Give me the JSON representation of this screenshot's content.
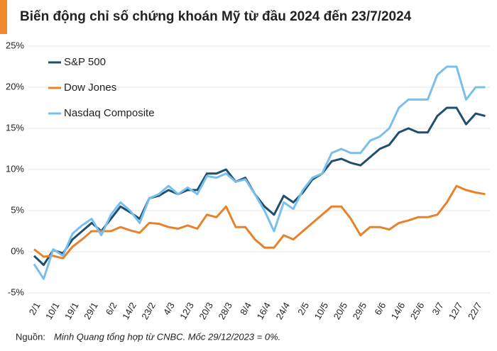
{
  "chart_data": {
    "type": "line",
    "title": "Biến động chỉ số chứng khoán Mỹ từ đầu 2024 đến 23/7/2024",
    "note_label": "Nguồn:",
    "note": "Minh Quang tổng hợp từ CNBC. Mốc 29/12/2023 = 0%.",
    "categories": [
      "2/1",
      null,
      "10/1",
      null,
      "19/1",
      null,
      "29/1",
      null,
      "6/2",
      null,
      "14/2",
      null,
      "23/2",
      null,
      "4/3",
      null,
      "12/3",
      null,
      "20/3",
      null,
      "28/3",
      null,
      "8/4",
      null,
      "16/4",
      null,
      "24/4",
      null,
      "2/5",
      null,
      "10/5",
      null,
      "20/5",
      null,
      "29/5",
      null,
      "6/6",
      null,
      "14/6",
      null,
      "25/6",
      null,
      "3/7",
      null,
      "12/7",
      null,
      "22/7",
      null
    ],
    "series": [
      {
        "name": "S&P 500",
        "color": "#1f4e6e",
        "values": [
          -0.5,
          -1.6,
          0.2,
          -0.2,
          1.5,
          2.5,
          3.5,
          2.5,
          4.0,
          5.5,
          4.8,
          4.0,
          6.5,
          6.8,
          7.5,
          7.0,
          7.5,
          7.5,
          9.5,
          9.5,
          10.0,
          8.5,
          9.0,
          7.0,
          5.5,
          4.5,
          6.8,
          6.0,
          7.2,
          8.8,
          9.5,
          11.0,
          11.3,
          10.8,
          10.5,
          11.5,
          12.5,
          13.0,
          14.5,
          15.0,
          14.5,
          14.5,
          16.5,
          17.5,
          17.5,
          15.5,
          16.8,
          16.5
        ]
      },
      {
        "name": "Dow Jones",
        "color": "#e8822a",
        "values": [
          0.3,
          -0.6,
          -0.5,
          -0.8,
          0.6,
          1.5,
          2.5,
          2.5,
          2.5,
          3.0,
          2.6,
          2.3,
          3.5,
          3.4,
          3.0,
          2.8,
          3.2,
          2.8,
          4.5,
          4.2,
          5.5,
          3.0,
          3.0,
          1.5,
          0.5,
          0.5,
          2.0,
          1.5,
          2.5,
          3.5,
          4.5,
          5.5,
          5.5,
          4.0,
          2.0,
          3.0,
          3.0,
          2.7,
          3.5,
          3.8,
          4.2,
          4.2,
          4.5,
          6.0,
          8.0,
          7.5,
          7.2,
          7.0
        ]
      },
      {
        "name": "Nasdaq Composite",
        "color": "#79bfee",
        "values": [
          -1.5,
          -3.3,
          0.3,
          -0.5,
          2.2,
          3.2,
          4.0,
          2.0,
          4.5,
          6.0,
          5.0,
          3.5,
          6.5,
          7.0,
          8.0,
          7.0,
          7.8,
          7.0,
          9.2,
          9.0,
          9.5,
          8.5,
          8.8,
          7.0,
          5.0,
          2.5,
          6.0,
          5.2,
          7.5,
          9.0,
          9.5,
          12.0,
          12.5,
          12.0,
          12.0,
          13.5,
          14.0,
          15.0,
          17.5,
          18.5,
          18.5,
          18.5,
          21.5,
          22.5,
          22.5,
          18.5,
          20.0,
          20.0
        ]
      }
    ],
    "ylim": [
      -5,
      25
    ],
    "yticks": [
      {
        "value": -5,
        "label": "-5%"
      },
      {
        "value": 0,
        "label": "0%"
      },
      {
        "value": 5,
        "label": "5%"
      },
      {
        "value": 10,
        "label": "10%"
      },
      {
        "value": 15,
        "label": "15%"
      },
      {
        "value": 20,
        "label": "20%"
      },
      {
        "value": 25,
        "label": "25%"
      }
    ],
    "grid": true,
    "legend": "top-left"
  }
}
